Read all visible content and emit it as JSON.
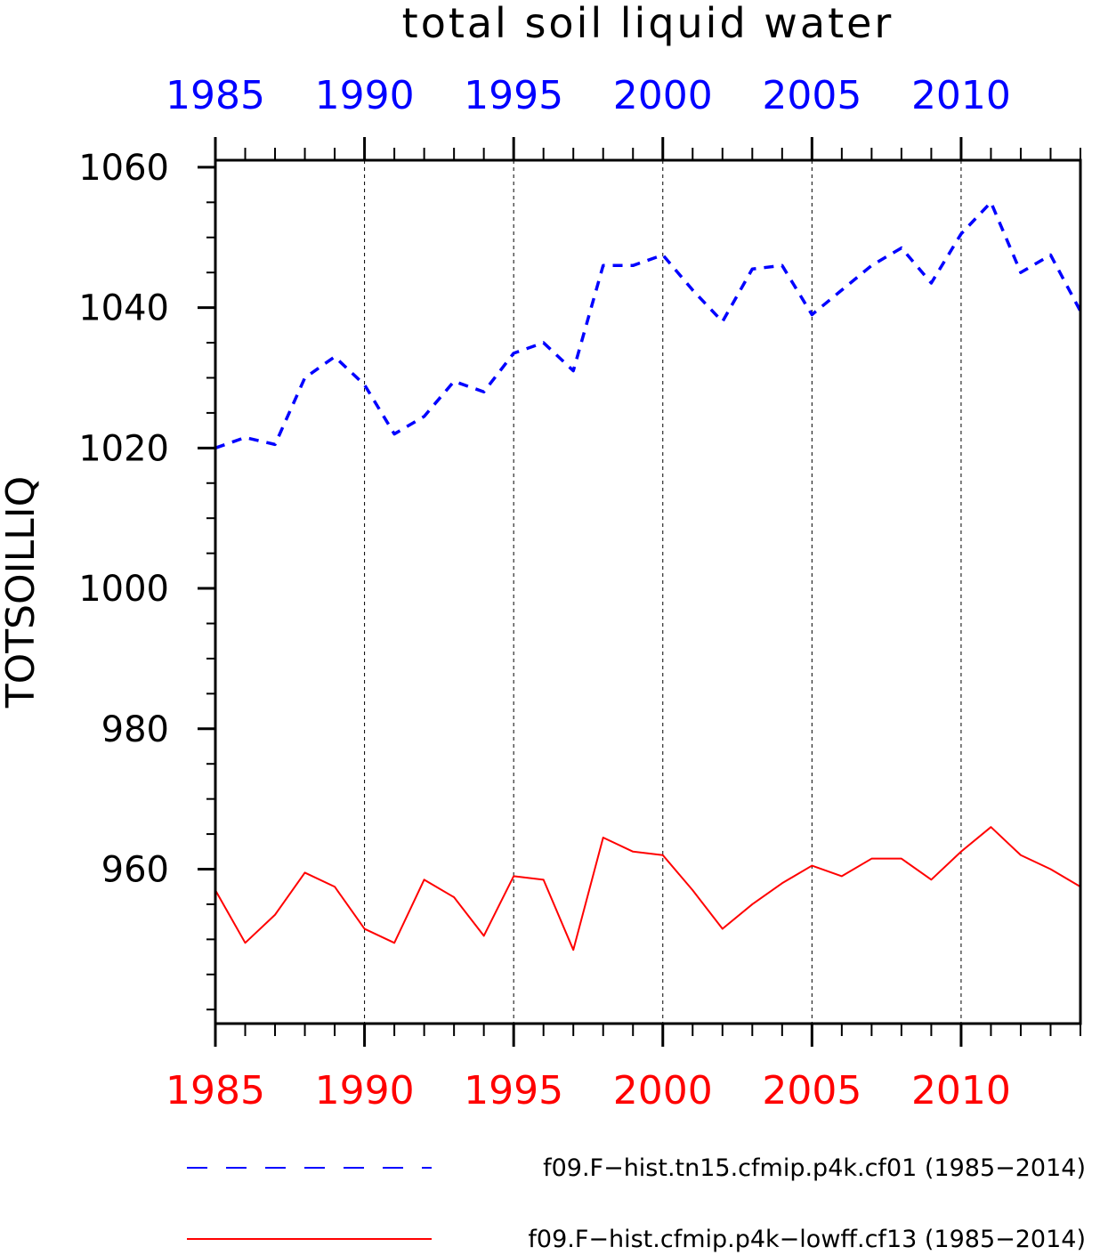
{
  "chart_data": {
    "type": "line",
    "title": "total soil liquid water",
    "ylabel": "TOTSOILLIQ",
    "xlabel": "",
    "xlim": [
      1985,
      2014
    ],
    "ylim": [
      938,
      1061
    ],
    "yticks_major": [
      960,
      980,
      1000,
      1020,
      1040,
      1060
    ],
    "ytick_labels": [
      "960",
      "980",
      "1000",
      "1020",
      "1040",
      "1060"
    ],
    "yminor_step": 5,
    "xticks_major": [
      1985,
      1990,
      1995,
      2000,
      2005,
      2010
    ],
    "xtick_labels_top": [
      "1985",
      "1990",
      "1995",
      "2000",
      "2005",
      "2010"
    ],
    "xtick_labels_bottom": [
      "1985",
      "1990",
      "1995",
      "2000",
      "2005",
      "2010"
    ],
    "vertical_gridlines": [
      1990,
      1995,
      2000,
      2005,
      2010
    ],
    "top_axis_color": "#0000ff",
    "bottom_axis_color": "#ff0000",
    "legend_placement": "bottom",
    "x": [
      1985,
      1986,
      1987,
      1988,
      1989,
      1990,
      1991,
      1992,
      1993,
      1994,
      1995,
      1996,
      1997,
      1998,
      1999,
      2000,
      2001,
      2002,
      2003,
      2004,
      2005,
      2006,
      2007,
      2008,
      2009,
      2010,
      2011,
      2012,
      2013,
      2014
    ],
    "series": [
      {
        "name": "f09.F−hist.tn15.cfmip.p4k.cf01 (1985−2014)",
        "color": "#0000ff",
        "style": "dashed",
        "values": [
          1020.0,
          1021.5,
          1020.5,
          1030.0,
          1033.0,
          1029.0,
          1022.0,
          1024.5,
          1029.5,
          1028.0,
          1033.5,
          1035.0,
          1031.0,
          1046.0,
          1046.0,
          1047.5,
          1042.5,
          1038.0,
          1045.5,
          1046.0,
          1039.0,
          1042.5,
          1046.0,
          1048.5,
          1043.5,
          1050.5,
          1055.0,
          1045.0,
          1047.5,
          1039.5
        ]
      },
      {
        "name": "f09.F−hist.cfmip.p4k−lowff.cf13 (1985−2014)",
        "color": "#ff0000",
        "style": "solid",
        "values": [
          957.0,
          949.5,
          953.5,
          959.5,
          957.5,
          951.5,
          949.5,
          958.5,
          956.0,
          950.5,
          959.0,
          958.5,
          948.5,
          964.5,
          962.5,
          962.0,
          957.0,
          951.5,
          955.0,
          958.0,
          960.5,
          959.0,
          961.5,
          961.5,
          958.5,
          962.5,
          966.0,
          962.0,
          960.0,
          957.5
        ]
      }
    ]
  }
}
